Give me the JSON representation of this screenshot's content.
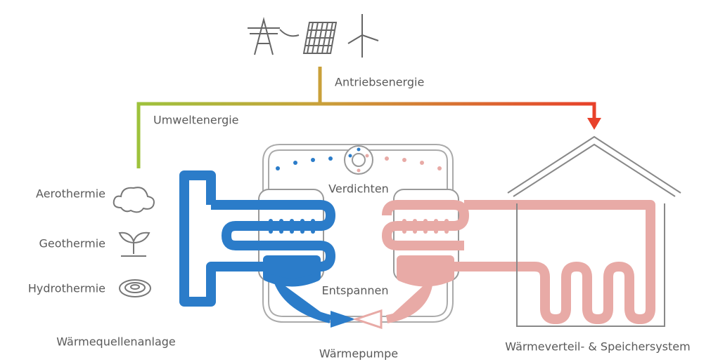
{
  "energy": {
    "drive": "Antriebsenergie",
    "environment": "Umweltenergie"
  },
  "sources": [
    "Aerothermie",
    "Geothermie",
    "Hydrothermie"
  ],
  "process": {
    "compress": "Verdichten",
    "expand": "Entspannen"
  },
  "sections": [
    "Wärmequellenanlage",
    "Wärmepumpe",
    "Wärmeverteil- & Speichersystem"
  ]
}
